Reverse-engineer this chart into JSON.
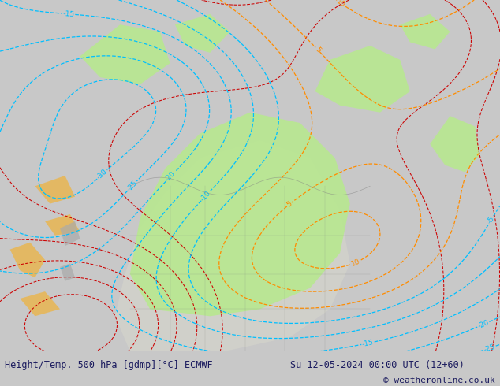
{
  "title_left": "Height/Temp. 500 hPa [gdmp][°C] ECMWF",
  "title_right": "Su 12-05-2024 00:00 UTC (12+60)",
  "copyright": "© weatheronline.co.uk",
  "bg_color": "#c8c8c8",
  "green_fill_color": "#b8e890",
  "font_color": "#1a1a5e",
  "figsize": [
    6.34,
    4.9
  ],
  "dpi": 100
}
